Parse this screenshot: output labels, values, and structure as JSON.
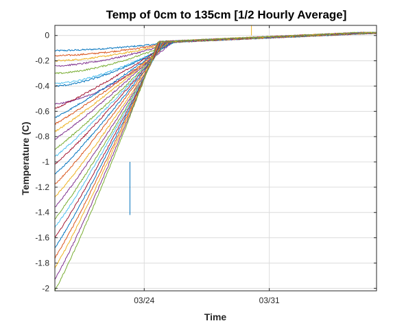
{
  "chart_data": {
    "type": "line",
    "title": "Temp of 0cm to 135cm [1/2 Hourly Average]",
    "xlabel": "Time",
    "ylabel": "Temperature (C)",
    "ylim": [
      -2.02,
      0.08
    ],
    "yticks": [
      0,
      -0.2,
      -0.4,
      -0.6,
      -0.8,
      -1,
      -1.2,
      -1.4,
      -1.6,
      -1.8,
      -2
    ],
    "xlim": [
      "2017-03-19",
      "2017-04-06"
    ],
    "xticks": [
      {
        "date": "2017-03-24",
        "label": "03/24"
      },
      {
        "date": "2017-03-31",
        "label": "03/31"
      }
    ],
    "grid": true,
    "series_count": 28,
    "series_note": "28 depth-series of half-hourly mean temperature; each warms from its start value toward ~0 C",
    "series": [
      {
        "start": -0.12,
        "end": 0.02,
        "color": "#0072BD"
      },
      {
        "start": -0.16,
        "end": 0.02,
        "color": "#D95319"
      },
      {
        "start": -0.2,
        "end": 0.02,
        "color": "#EDB120"
      },
      {
        "start": -0.24,
        "end": 0.02,
        "color": "#7E2F8E"
      },
      {
        "start": -0.3,
        "end": 0.02,
        "color": "#77AC30"
      },
      {
        "start": -0.38,
        "end": 0.02,
        "color": "#4DBEEE"
      },
      {
        "start": -0.4,
        "end": 0.02,
        "color": "#0072BD"
      },
      {
        "start": -0.54,
        "end": 0.02,
        "color": "#7E2F8E"
      },
      {
        "start": -0.58,
        "end": 0.02,
        "color": "#A2142F"
      },
      {
        "start": -0.65,
        "end": 0.02,
        "color": "#0072BD"
      },
      {
        "start": -0.7,
        "end": 0.02,
        "color": "#D95319"
      },
      {
        "start": -0.76,
        "end": 0.02,
        "color": "#EDB120"
      },
      {
        "start": -0.82,
        "end": 0.02,
        "color": "#7E2F8E"
      },
      {
        "start": -0.9,
        "end": 0.02,
        "color": "#77AC30"
      },
      {
        "start": -0.96,
        "end": 0.02,
        "color": "#4DBEEE"
      },
      {
        "start": -1.02,
        "end": 0.02,
        "color": "#A2142F"
      },
      {
        "start": -1.1,
        "end": 0.02,
        "color": "#0072BD"
      },
      {
        "start": -1.18,
        "end": 0.02,
        "color": "#D95319"
      },
      {
        "start": -1.28,
        "end": 0.02,
        "color": "#EDB120"
      },
      {
        "start": -1.36,
        "end": 0.02,
        "color": "#7E2F8E"
      },
      {
        "start": -1.45,
        "end": 0.02,
        "color": "#77AC30"
      },
      {
        "start": -1.52,
        "end": 0.02,
        "color": "#4DBEEE"
      },
      {
        "start": -1.6,
        "end": 0.02,
        "color": "#A2142F"
      },
      {
        "start": -1.68,
        "end": 0.02,
        "color": "#0072BD"
      },
      {
        "start": -1.76,
        "end": 0.02,
        "color": "#D95319"
      },
      {
        "start": -1.84,
        "end": 0.02,
        "color": "#EDB120"
      },
      {
        "start": -1.93,
        "end": 0.02,
        "color": "#7E2F8E"
      },
      {
        "start": -2.02,
        "end": 0.02,
        "color": "#77AC30"
      }
    ]
  }
}
